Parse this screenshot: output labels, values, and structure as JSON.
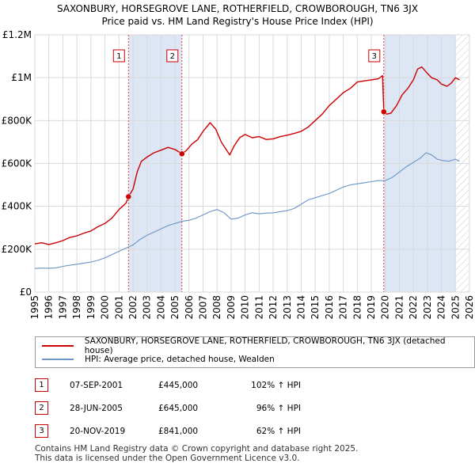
{
  "title_line1": "SAXONBURY, HORSEGROVE LANE, ROTHERFIELD, CROWBOROUGH, TN6 3JX",
  "title_line2": "Price paid vs. HM Land Registry's House Price Index (HPI)",
  "colors": {
    "property": "#cc0000",
    "hpi": "#6a95c5",
    "shade": "#dde6f5",
    "vline": "#dd4444"
  },
  "chart_data": {
    "type": "line",
    "xlabel": "",
    "ylabel": "",
    "xlim": [
      1995.0,
      2026.0
    ],
    "ylim": [
      0,
      1200000
    ],
    "x_ticks": [
      "1995",
      "1996",
      "1997",
      "1998",
      "1999",
      "2000",
      "2001",
      "2002",
      "2003",
      "2004",
      "2005",
      "2006",
      "2007",
      "2008",
      "2009",
      "2010",
      "2011",
      "2012",
      "2013",
      "2014",
      "2015",
      "2016",
      "2017",
      "2018",
      "2019",
      "2020",
      "2021",
      "2022",
      "2023",
      "2024",
      "2025",
      "2026"
    ],
    "y_ticks": [
      {
        "value": 0,
        "label": "£0"
      },
      {
        "value": 200000,
        "label": "£200K"
      },
      {
        "value": 400000,
        "label": "£400K"
      },
      {
        "value": 600000,
        "label": "£600K"
      },
      {
        "value": 800000,
        "label": "£800K"
      },
      {
        "value": 1000000,
        "label": "£1M"
      },
      {
        "value": 1200000,
        "label": "£1.2M"
      }
    ],
    "shaded_ranges": [
      [
        2001.68,
        2005.49
      ],
      [
        2019.89,
        2025.0
      ]
    ],
    "hatch_from": 2025.0,
    "series": [
      {
        "name": "SAXONBURY, HORSEGROVE LANE, ROTHERFIELD, CROWBOROUGH, TN6 3JX (detached house)",
        "x": [
          1995.0,
          1995.5,
          1996.0,
          1996.5,
          1997.0,
          1997.5,
          1998.0,
          1998.5,
          1999.0,
          1999.5,
          2000.0,
          2000.5,
          2001.0,
          2001.5,
          2001.68,
          2002.0,
          2002.3,
          2002.6,
          2003.0,
          2003.5,
          2004.0,
          2004.5,
          2005.0,
          2005.49,
          2005.8,
          2006.2,
          2006.6,
          2007.0,
          2007.5,
          2007.9,
          2008.3,
          2008.7,
          2008.9,
          2009.2,
          2009.6,
          2010.0,
          2010.5,
          2011.0,
          2011.5,
          2012.0,
          2012.5,
          2013.0,
          2013.5,
          2014.0,
          2014.5,
          2015.0,
          2015.5,
          2016.0,
          2016.5,
          2017.0,
          2017.5,
          2018.0,
          2018.5,
          2019.0,
          2019.5,
          2019.8,
          2019.89,
          2020.1,
          2020.4,
          2020.8,
          2021.2,
          2021.6,
          2022.0,
          2022.3,
          2022.6,
          2023.0,
          2023.3,
          2023.7,
          2024.0,
          2024.4,
          2024.7,
          2025.0,
          2025.3
        ],
        "values": [
          225000,
          230000,
          222000,
          230000,
          240000,
          255000,
          262000,
          275000,
          285000,
          305000,
          320000,
          345000,
          385000,
          415000,
          445000,
          480000,
          560000,
          610000,
          630000,
          650000,
          662000,
          675000,
          665000,
          645000,
          660000,
          690000,
          710000,
          750000,
          790000,
          760000,
          700000,
          660000,
          640000,
          680000,
          720000,
          735000,
          720000,
          725000,
          712000,
          715000,
          725000,
          732000,
          740000,
          750000,
          770000,
          800000,
          830000,
          870000,
          900000,
          930000,
          950000,
          980000,
          985000,
          990000,
          995000,
          1010000,
          841000,
          830000,
          835000,
          870000,
          920000,
          950000,
          990000,
          1040000,
          1050000,
          1020000,
          1000000,
          990000,
          970000,
          960000,
          975000,
          1000000,
          990000
        ]
      },
      {
        "name": "HPI: Average price, detached house, Wealden",
        "x": [
          1995.0,
          1995.5,
          1996.0,
          1996.5,
          1997.0,
          1997.5,
          1998.0,
          1998.5,
          1999.0,
          1999.5,
          2000.0,
          2000.5,
          2001.0,
          2001.5,
          2002.0,
          2002.5,
          2003.0,
          2003.5,
          2004.0,
          2004.5,
          2005.0,
          2005.5,
          2006.0,
          2006.5,
          2007.0,
          2007.5,
          2008.0,
          2008.5,
          2009.0,
          2009.5,
          2010.0,
          2010.5,
          2011.0,
          2011.5,
          2012.0,
          2012.5,
          2013.0,
          2013.5,
          2014.0,
          2014.5,
          2015.0,
          2015.5,
          2016.0,
          2016.5,
          2017.0,
          2017.5,
          2018.0,
          2018.5,
          2019.0,
          2019.5,
          2020.0,
          2020.5,
          2021.0,
          2021.5,
          2022.0,
          2022.5,
          2022.9,
          2023.3,
          2023.7,
          2024.0,
          2024.5,
          2025.0,
          2025.3
        ],
        "values": [
          110000,
          112000,
          111000,
          113000,
          120000,
          125000,
          130000,
          135000,
          140000,
          148000,
          160000,
          175000,
          190000,
          205000,
          220000,
          245000,
          265000,
          280000,
          295000,
          310000,
          320000,
          330000,
          335000,
          345000,
          360000,
          375000,
          385000,
          370000,
          340000,
          345000,
          360000,
          370000,
          365000,
          368000,
          370000,
          375000,
          380000,
          390000,
          410000,
          430000,
          440000,
          450000,
          460000,
          475000,
          490000,
          500000,
          505000,
          510000,
          515000,
          520000,
          520000,
          535000,
          560000,
          585000,
          605000,
          625000,
          650000,
          640000,
          620000,
          615000,
          610000,
          620000,
          610000
        ]
      }
    ],
    "annotations": [
      {
        "label": "1",
        "x": 2001.68,
        "y": 445000
      },
      {
        "label": "2",
        "x": 2005.49,
        "y": 645000
      },
      {
        "label": "3",
        "x": 2019.89,
        "y": 841000
      }
    ]
  },
  "legend": {
    "property_label": "SAXONBURY, HORSEGROVE LANE, ROTHERFIELD, CROWBOROUGH, TN6 3JX (detached house)",
    "hpi_label": "HPI: Average price, detached house, Wealden"
  },
  "sales": [
    {
      "num": "1",
      "date": "07-SEP-2001",
      "price": "£445,000",
      "hpi": "102% ↑ HPI"
    },
    {
      "num": "2",
      "date": "28-JUN-2005",
      "price": "£645,000",
      "hpi": "96% ↑ HPI"
    },
    {
      "num": "3",
      "date": "20-NOV-2019",
      "price": "£841,000",
      "hpi": "62% ↑ HPI"
    }
  ],
  "footer_line1": "Contains HM Land Registry data © Crown copyright and database right 2025.",
  "footer_line2": "This data is licensed under the Open Government Licence v3.0."
}
